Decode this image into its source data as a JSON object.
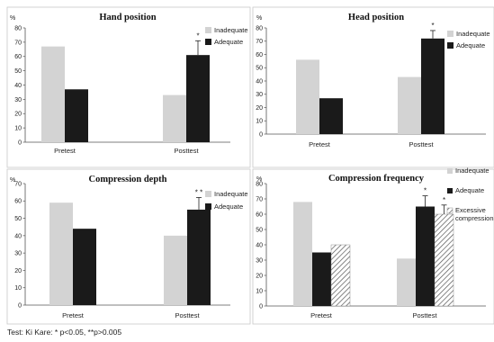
{
  "footnote": "Test: Ki Kare: * p<0.05,    **p>0.005",
  "chart_data": [
    {
      "type": "bar",
      "title": "Hand position",
      "ylabel": "%",
      "ylim": [
        0,
        80
      ],
      "yticks": [
        0,
        10,
        20,
        30,
        40,
        50,
        60,
        70,
        80
      ],
      "categories": [
        "Pretest",
        "Posttest"
      ],
      "series": [
        {
          "name": "Inadequate",
          "values": [
            67,
            33
          ],
          "color": "#d3d3d3"
        },
        {
          "name": "Adequate",
          "values": [
            37,
            61
          ],
          "color": "#1a1a1a"
        }
      ],
      "error_bars": [
        {
          "series": 1,
          "category": 1,
          "high": 71
        }
      ],
      "annotations": [
        {
          "text": "*",
          "series": 1,
          "category": 1
        }
      ],
      "legend": "top-right"
    },
    {
      "type": "bar",
      "title": "Head position",
      "ylabel": "%",
      "ylim": [
        0,
        80
      ],
      "yticks": [
        0,
        10,
        20,
        30,
        40,
        50,
        60,
        70,
        80
      ],
      "categories": [
        "Pretest",
        "Posttest"
      ],
      "series": [
        {
          "name": "Inadequate",
          "values": [
            56,
            43
          ],
          "color": "#d3d3d3"
        },
        {
          "name": "Adequate",
          "values": [
            27,
            72
          ],
          "color": "#1a1a1a"
        }
      ],
      "error_bars": [
        {
          "series": 1,
          "category": 1,
          "high": 78
        }
      ],
      "annotations": [
        {
          "text": "*",
          "series": 1,
          "category": 1
        }
      ],
      "legend": "top-right"
    },
    {
      "type": "bar",
      "title": "Compression depth",
      "ylabel": "%",
      "ylim": [
        0,
        70
      ],
      "yticks": [
        0,
        10,
        20,
        30,
        40,
        50,
        60,
        70
      ],
      "categories": [
        "Pretest",
        "Posttest"
      ],
      "series": [
        {
          "name": "Inadequate",
          "values": [
            59,
            40
          ],
          "color": "#d3d3d3"
        },
        {
          "name": "Adequate",
          "values": [
            44,
            55
          ],
          "color": "#1a1a1a"
        }
      ],
      "error_bars": [
        {
          "series": 1,
          "category": 1,
          "high": 62
        }
      ],
      "annotations": [
        {
          "text": "* *",
          "series": 1,
          "category": 1
        }
      ],
      "legend": "top-right"
    },
    {
      "type": "bar",
      "title": "Compression frequency",
      "ylabel": "%",
      "ylim": [
        0,
        80
      ],
      "yticks": [
        0,
        10,
        20,
        30,
        40,
        50,
        60,
        70,
        80
      ],
      "categories": [
        "Pretest",
        "Posttest"
      ],
      "series": [
        {
          "name": "Inadequate",
          "values": [
            68,
            31
          ],
          "color": "#d3d3d3"
        },
        {
          "name": "Adequate",
          "values": [
            35,
            65
          ],
          "color": "#1a1a1a"
        },
        {
          "name": "Excessive compression",
          "values": [
            40,
            60
          ],
          "color": "hatched"
        }
      ],
      "error_bars": [
        {
          "series": 1,
          "category": 1,
          "high": 72
        },
        {
          "series": 2,
          "category": 1,
          "high": 66
        }
      ],
      "annotations": [
        {
          "text": "*",
          "series": 1,
          "category": 1
        },
        {
          "text": "*",
          "series": 2,
          "category": 1
        }
      ],
      "legend": "right"
    }
  ]
}
